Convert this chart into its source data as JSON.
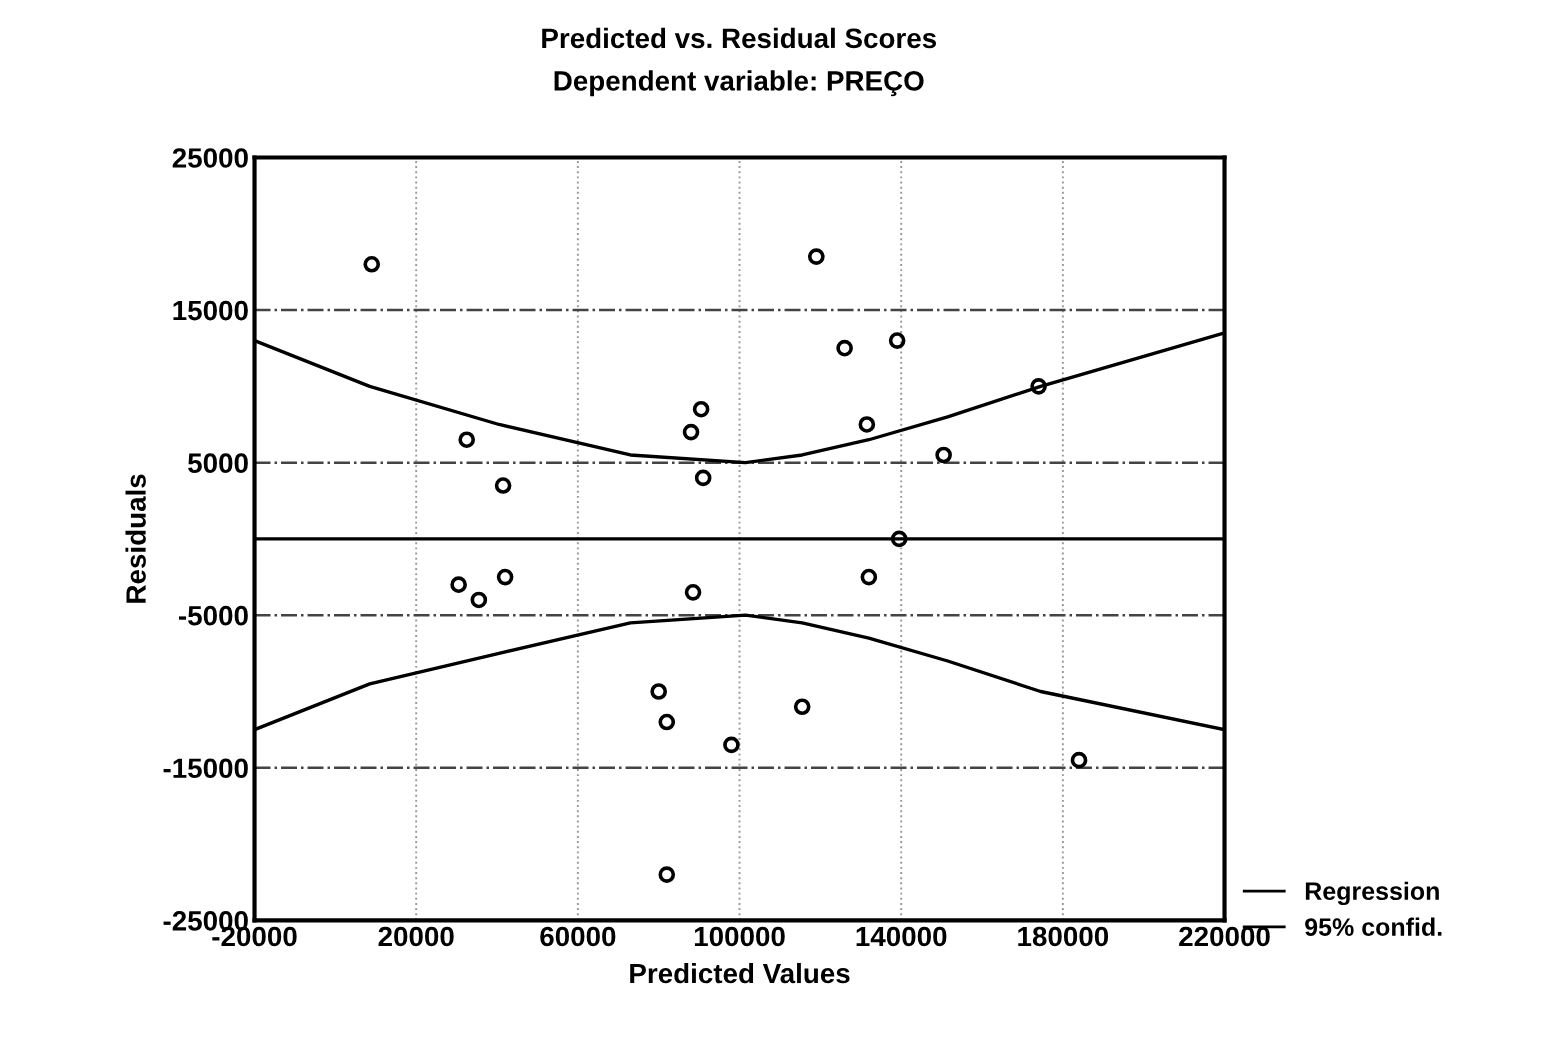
{
  "chart_data": {
    "type": "scatter",
    "title": "Predicted vs. Residual Scores",
    "subtitle": "Dependent variable: PREÇO",
    "xlabel": "Predicted Values",
    "ylabel": "Residuals",
    "xlim": [
      -20000,
      220000
    ],
    "xticks": [
      -20000,
      20000,
      60000,
      100000,
      140000,
      180000,
      220000
    ],
    "ylim": [
      -25000,
      25000
    ],
    "yticks": [
      -25000,
      -15000,
      -5000,
      5000,
      15000,
      25000
    ],
    "grid": true,
    "legend": "bottom right",
    "series": [
      {
        "color": "#000000",
        "marker": "circle",
        "x": [
          9000,
          32500,
          41500,
          30500,
          35500,
          42000,
          88000,
          90500,
          91000,
          88500,
          80000,
          82000,
          98000,
          82000,
          119000,
          126000,
          139000,
          131500,
          174000,
          150500,
          139500,
          132000,
          115500,
          184000
        ],
        "values": [
          18000,
          6500,
          3500,
          -3000,
          -4000,
          -2500,
          7000,
          8500,
          4000,
          -3500,
          -10000,
          -12000,
          -13500,
          -22000,
          18500,
          12500,
          13000,
          7500,
          10000,
          5500,
          0,
          -2500,
          -11000,
          -14500
        ]
      },
      {
        "type": "line",
        "name": "Regression",
        "color": "#000000",
        "x": [
          -20000,
          220000
        ],
        "values": [
          0,
          0
        ]
      },
      {
        "type": "line",
        "name": "95% confid.",
        "color": "#000000",
        "x": [
          -20000,
          8500,
          40500,
          73000,
          101500,
          115500,
          132000,
          151500,
          174500,
          220000
        ],
        "values": [
          13000,
          10000,
          7500,
          5500,
          5000,
          5500,
          6500,
          8000,
          10000,
          13500
        ]
      },
      {
        "type": "line",
        "color": "#000000",
        "x": [
          -20000,
          8500,
          40500,
          73000,
          101500,
          115500,
          132000,
          151500,
          174500,
          220000
        ],
        "values": [
          -12500,
          -9500,
          -7500,
          -5500,
          -5000,
          -5500,
          -6500,
          -8000,
          -10000,
          -12500
        ]
      }
    ]
  }
}
